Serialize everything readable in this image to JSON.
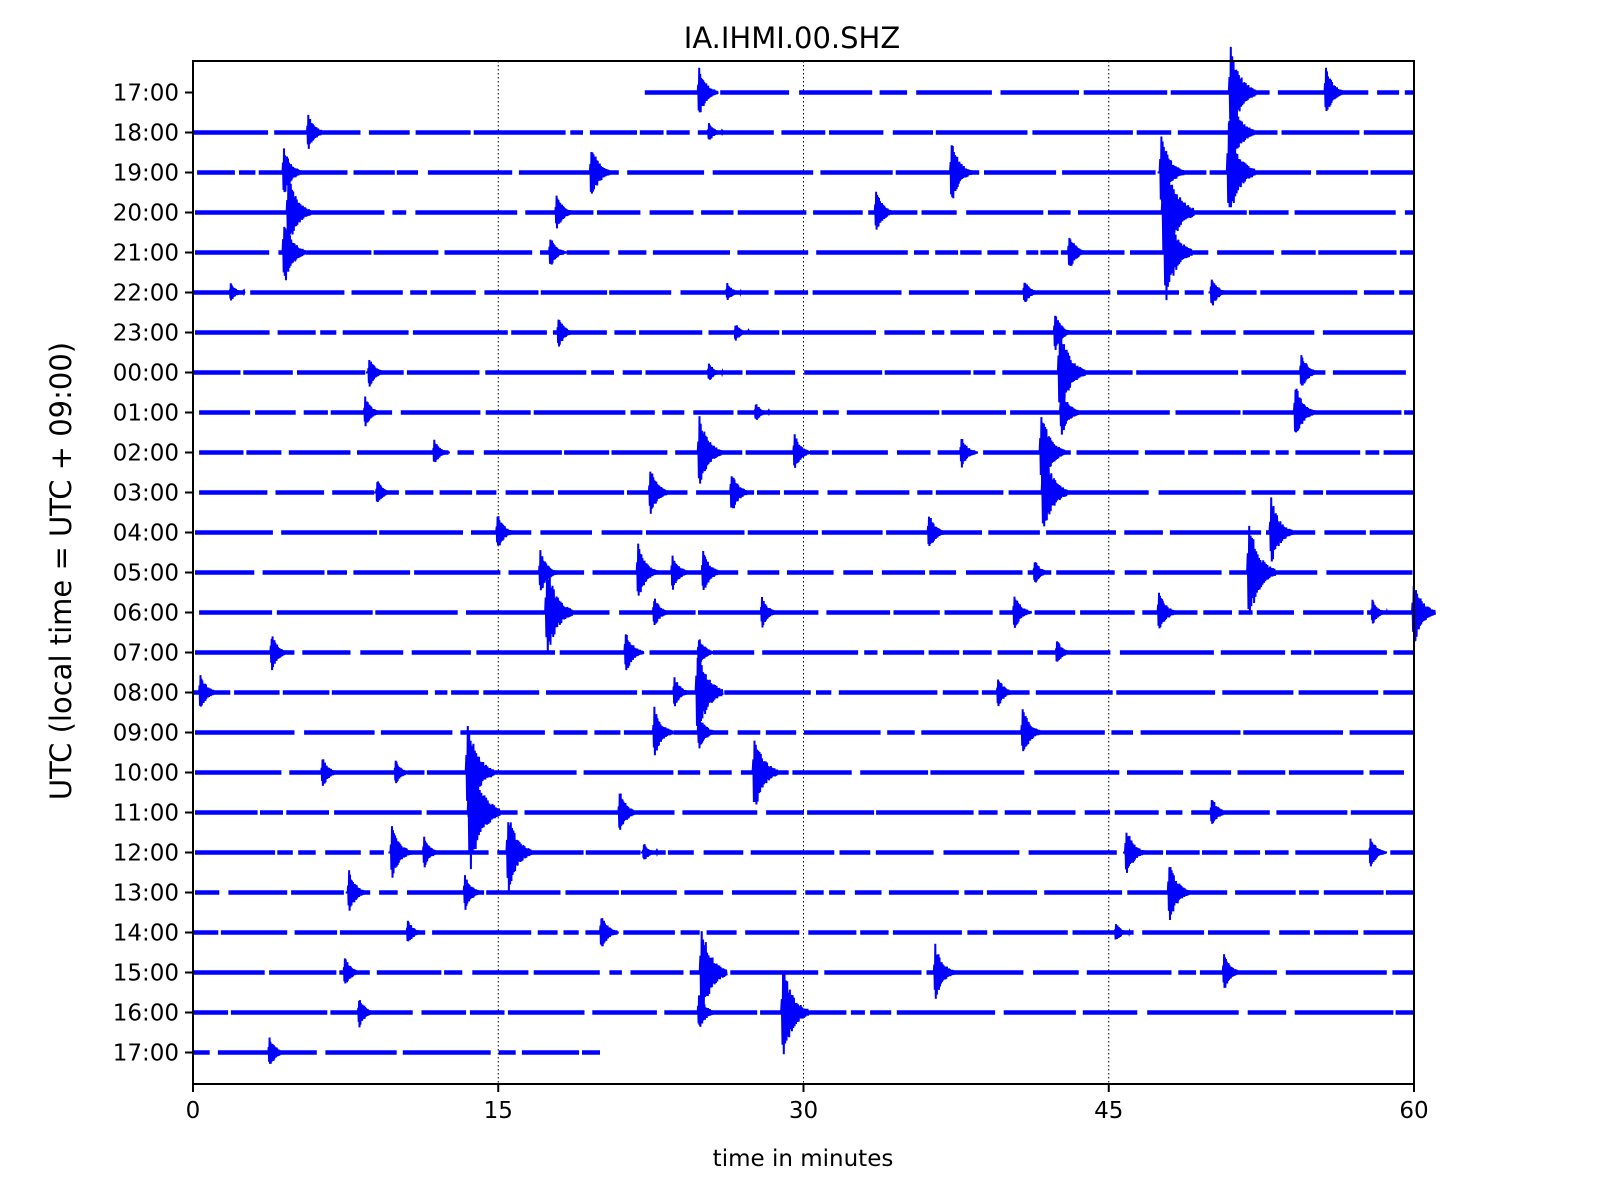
{
  "chart_data": {
    "type": "line",
    "title": "IA.IHMI.00.SHZ",
    "xlabel": "time in minutes",
    "ylabel": "UTC (local time = UTC + 09:00)",
    "xlim": [
      0,
      60
    ],
    "x_ticks": [
      0,
      15,
      30,
      45,
      60
    ],
    "gridlines_x": [
      15,
      30,
      45
    ],
    "grid": "vertical dotted at major x ticks",
    "trace_color": "#0000ff",
    "rows": [
      {
        "label": "17:00",
        "start": 22.2,
        "end": 60,
        "events": [
          {
            "t": 24.8,
            "amp": 0.8
          },
          {
            "t": 50.9,
            "amp": 1.5
          },
          {
            "t": 55.6,
            "amp": 0.8
          }
        ],
        "gaps": []
      },
      {
        "label": "18:00",
        "start": 0,
        "end": 60,
        "events": [
          {
            "t": 5.6,
            "amp": 0.6
          },
          {
            "t": 25.3,
            "amp": 0.3
          },
          {
            "t": 50.9,
            "amp": 1.3
          }
        ],
        "gaps": []
      },
      {
        "label": "19:00",
        "start": 0.2,
        "end": 60,
        "events": [
          {
            "t": 4.4,
            "amp": 0.8
          },
          {
            "t": 19.5,
            "amp": 0.9
          },
          {
            "t": 37.2,
            "amp": 1.0
          },
          {
            "t": 47.5,
            "amp": 1.2
          },
          {
            "t": 50.8,
            "amp": 1.6
          }
        ],
        "gaps": []
      },
      {
        "label": "20:00",
        "start": 0.1,
        "end": 60,
        "events": [
          {
            "t": 4.6,
            "amp": 1.2
          },
          {
            "t": 17.8,
            "amp": 0.6
          },
          {
            "t": 33.5,
            "amp": 0.7
          },
          {
            "t": 47.6,
            "amp": 2.0
          }
        ],
        "gaps": []
      },
      {
        "label": "21:00",
        "start": 0.1,
        "end": 60,
        "events": [
          {
            "t": 4.4,
            "amp": 1.1
          },
          {
            "t": 17.5,
            "amp": 0.5
          },
          {
            "t": 43.0,
            "amp": 0.6
          },
          {
            "t": 47.7,
            "amp": 1.6
          }
        ],
        "gaps": [
          [
            31.5,
            32.3
          ]
        ]
      },
      {
        "label": "22:00",
        "start": 0,
        "end": 60,
        "events": [
          {
            "t": 1.8,
            "amp": 0.3
          },
          {
            "t": 26.2,
            "amp": 0.3
          },
          {
            "t": 40.8,
            "amp": 0.4
          },
          {
            "t": 50.0,
            "amp": 0.5
          }
        ],
        "gaps": []
      },
      {
        "label": "23:00",
        "start": 0.1,
        "end": 60,
        "events": [
          {
            "t": 17.9,
            "amp": 0.5
          },
          {
            "t": 26.6,
            "amp": 0.3
          },
          {
            "t": 42.3,
            "amp": 0.6
          }
        ],
        "gaps": []
      },
      {
        "label": "00:00",
        "start": 0,
        "end": 59.6,
        "events": [
          {
            "t": 8.6,
            "amp": 0.5
          },
          {
            "t": 25.3,
            "amp": 0.3
          },
          {
            "t": 42.5,
            "amp": 1.5
          },
          {
            "t": 54.4,
            "amp": 0.6
          }
        ],
        "gaps": []
      },
      {
        "label": "01:00",
        "start": 0.3,
        "end": 60,
        "events": [
          {
            "t": 8.4,
            "amp": 0.5
          },
          {
            "t": 27.6,
            "amp": 0.3
          },
          {
            "t": 42.6,
            "amp": 0.8
          },
          {
            "t": 54.1,
            "amp": 0.9
          }
        ],
        "gaps": []
      },
      {
        "label": "02:00",
        "start": 0.3,
        "end": 60,
        "events": [
          {
            "t": 11.8,
            "amp": 0.4
          },
          {
            "t": 24.8,
            "amp": 1.2
          },
          {
            "t": 29.5,
            "amp": 0.6
          },
          {
            "t": 37.7,
            "amp": 0.5
          },
          {
            "t": 41.6,
            "amp": 1.3
          }
        ],
        "gaps": []
      },
      {
        "label": "03:00",
        "start": 0.3,
        "end": 60,
        "events": [
          {
            "t": 9.0,
            "amp": 0.4
          },
          {
            "t": 22.4,
            "amp": 0.8
          },
          {
            "t": 26.4,
            "amp": 0.7
          },
          {
            "t": 41.7,
            "amp": 1.4
          }
        ],
        "gaps": []
      },
      {
        "label": "04:00",
        "start": 0.1,
        "end": 60,
        "events": [
          {
            "t": 14.9,
            "amp": 0.6
          },
          {
            "t": 36.1,
            "amp": 0.6
          },
          {
            "t": 52.9,
            "amp": 1.1
          }
        ],
        "gaps": []
      },
      {
        "label": "05:00",
        "start": 0.1,
        "end": 60,
        "events": [
          {
            "t": 17.0,
            "amp": 0.7
          },
          {
            "t": 21.8,
            "amp": 0.9
          },
          {
            "t": 23.5,
            "amp": 0.6
          },
          {
            "t": 25.0,
            "amp": 0.7
          },
          {
            "t": 41.3,
            "amp": 0.4
          },
          {
            "t": 51.8,
            "amp": 1.6
          }
        ],
        "gaps": []
      },
      {
        "label": "06:00",
        "start": 0.3,
        "end": 60,
        "events": [
          {
            "t": 17.3,
            "amp": 1.5
          },
          {
            "t": 22.6,
            "amp": 0.5
          },
          {
            "t": 27.9,
            "amp": 0.5
          },
          {
            "t": 40.3,
            "amp": 0.6
          },
          {
            "t": 47.4,
            "amp": 0.7
          },
          {
            "t": 57.9,
            "amp": 0.4
          },
          {
            "t": 59.9,
            "amp": 1.1
          }
        ],
        "gaps": []
      },
      {
        "label": "07:00",
        "start": 0.1,
        "end": 60,
        "events": [
          {
            "t": 3.8,
            "amp": 0.6
          },
          {
            "t": 21.2,
            "amp": 0.7
          },
          {
            "t": 24.8,
            "amp": 0.5
          },
          {
            "t": 42.4,
            "amp": 0.4
          }
        ],
        "gaps": []
      },
      {
        "label": "08:00",
        "start": 0,
        "end": 60,
        "events": [
          {
            "t": 0.3,
            "amp": 0.6
          },
          {
            "t": 23.6,
            "amp": 0.5
          },
          {
            "t": 24.7,
            "amp": 1.5
          },
          {
            "t": 39.5,
            "amp": 0.5
          }
        ],
        "gaps": []
      },
      {
        "label": "09:00",
        "start": 0.1,
        "end": 60,
        "events": [
          {
            "t": 22.6,
            "amp": 0.8
          },
          {
            "t": 24.8,
            "amp": 0.6
          },
          {
            "t": 40.7,
            "amp": 0.8
          }
        ],
        "gaps": []
      },
      {
        "label": "10:00",
        "start": 0.1,
        "end": 60,
        "events": [
          {
            "t": 6.3,
            "amp": 0.5
          },
          {
            "t": 9.9,
            "amp": 0.4
          },
          {
            "t": 13.4,
            "amp": 1.6
          },
          {
            "t": 27.5,
            "amp": 1.3
          }
        ],
        "gaps": []
      },
      {
        "label": "11:00",
        "start": 0.1,
        "end": 60,
        "events": [
          {
            "t": 13.5,
            "amp": 2.0
          },
          {
            "t": 20.9,
            "amp": 0.7
          },
          {
            "t": 50.0,
            "amp": 0.5
          }
        ],
        "gaps": []
      },
      {
        "label": "12:00",
        "start": 0.1,
        "end": 60,
        "events": [
          {
            "t": 9.7,
            "amp": 0.9
          },
          {
            "t": 11.3,
            "amp": 0.5
          },
          {
            "t": 15.4,
            "amp": 1.3
          },
          {
            "t": 22.1,
            "amp": 0.3
          },
          {
            "t": 45.8,
            "amp": 0.8
          },
          {
            "t": 57.8,
            "amp": 0.5
          }
        ],
        "gaps": []
      },
      {
        "label": "13:00",
        "start": 0.1,
        "end": 60,
        "events": [
          {
            "t": 7.6,
            "amp": 0.7
          },
          {
            "t": 13.3,
            "amp": 0.6
          },
          {
            "t": 47.9,
            "amp": 1.0
          }
        ],
        "gaps": []
      },
      {
        "label": "14:00",
        "start": 0,
        "end": 60,
        "events": [
          {
            "t": 10.5,
            "amp": 0.4
          },
          {
            "t": 20.0,
            "amp": 0.6
          },
          {
            "t": 45.3,
            "amp": 0.3
          }
        ],
        "gaps": []
      },
      {
        "label": "15:00",
        "start": 0,
        "end": 60,
        "events": [
          {
            "t": 7.4,
            "amp": 0.5
          },
          {
            "t": 24.9,
            "amp": 1.5
          },
          {
            "t": 36.4,
            "amp": 0.9
          },
          {
            "t": 50.6,
            "amp": 0.6
          }
        ],
        "gaps": []
      },
      {
        "label": "16:00",
        "start": 0,
        "end": 60,
        "events": [
          {
            "t": 8.1,
            "amp": 0.5
          },
          {
            "t": 24.8,
            "amp": 0.6
          },
          {
            "t": 28.9,
            "amp": 1.5
          }
        ],
        "gaps": []
      },
      {
        "label": "17:00",
        "start": 0,
        "end": 20.0,
        "events": [
          {
            "t": 3.7,
            "amp": 0.5
          }
        ],
        "gaps": []
      }
    ]
  }
}
